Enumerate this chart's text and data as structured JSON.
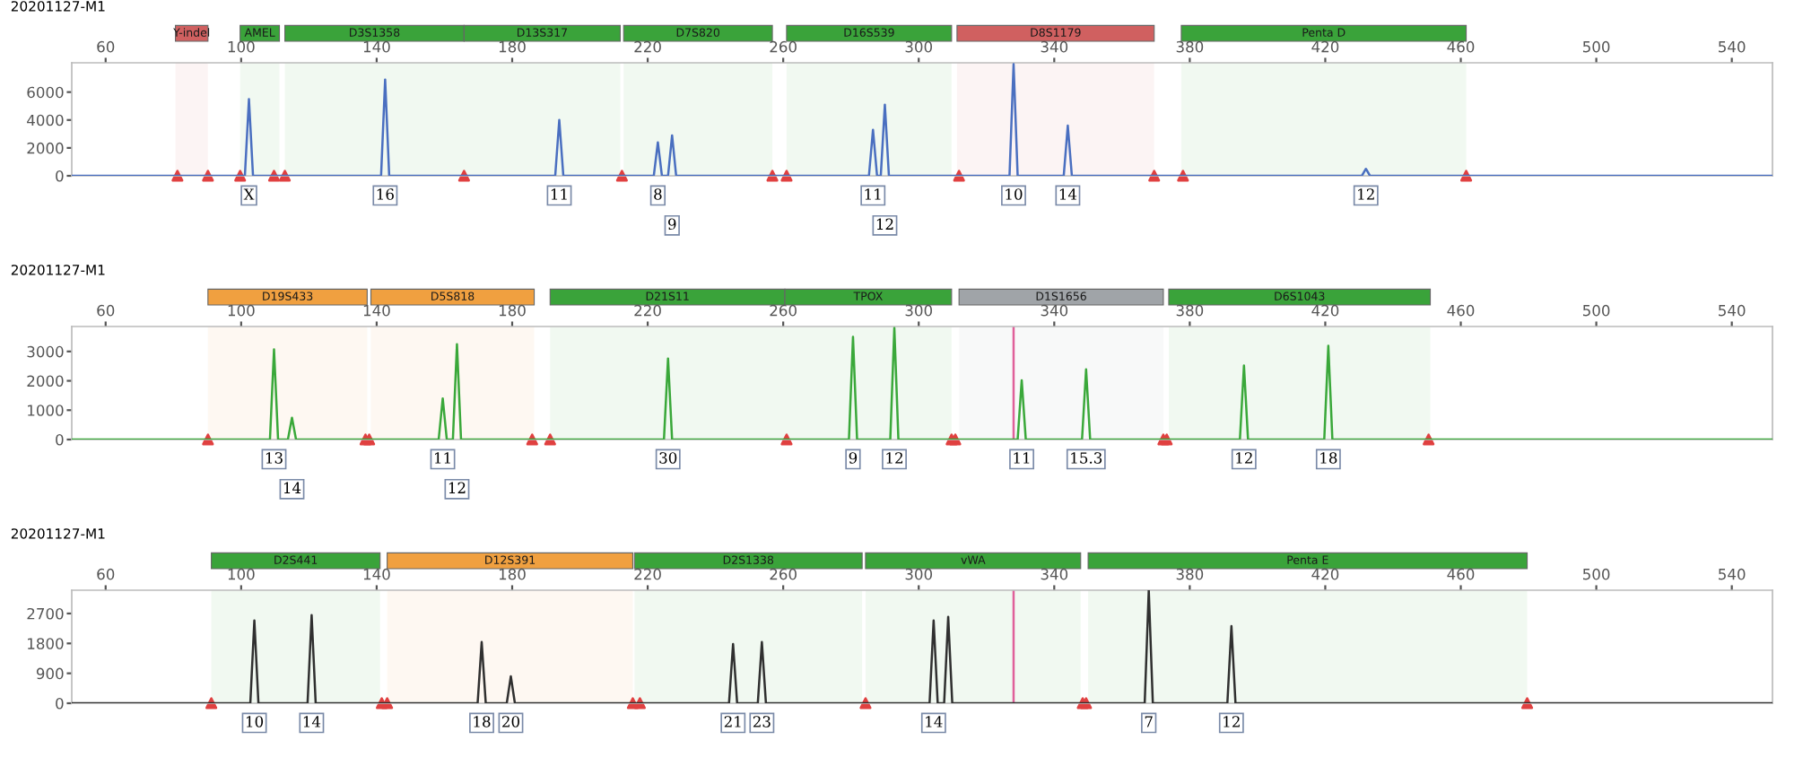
{
  "chart_data": [
    {
      "type": "line",
      "title": "20201127-M1",
      "xlim": [
        50,
        552
      ],
      "xticks": [
        60,
        100,
        140,
        180,
        220,
        260,
        300,
        340,
        380,
        420,
        460,
        500,
        540
      ],
      "ylim": [
        0,
        8100
      ],
      "yticks": [
        0,
        2000,
        4000,
        6000
      ],
      "marker": "none",
      "line_style": "solid",
      "grid": false,
      "series": [
        {
          "color": "#4a6fc0",
          "x": [
            50,
            101.1,
            102.3,
            103.5,
            141.3,
            142.5,
            143.7,
            192.7,
            193.9,
            195.1,
            221.8,
            223,
            224.2,
            226,
            227.2,
            228.4,
            285.3,
            286.5,
            287.7,
            288.8,
            290,
            291.2,
            326.8,
            328,
            329.2,
            342.8,
            344,
            345.2,
            430.8,
            432,
            433.2,
            552
          ],
          "values": [
            0,
            0,
            5500,
            0,
            0,
            6900,
            0,
            0,
            4000,
            0,
            0,
            2400,
            0,
            0,
            2900,
            0,
            0,
            3300,
            0,
            0,
            5100,
            0,
            0,
            8000,
            0,
            0,
            3600,
            0,
            0,
            500,
            0,
            0
          ]
        },
        {
          "type": "scatter",
          "marker": "triangle",
          "color": "#e04040",
          "x": [
            81.2,
            90.2,
            99.7,
            109.7,
            112.9,
            165.8,
            212.4,
            256.8,
            261,
            311.9,
            369.5,
            378,
            461.6
          ],
          "values": [
            0,
            0,
            0,
            0,
            0,
            0,
            0,
            0,
            0,
            0,
            0,
            0,
            0
          ]
        }
      ],
      "bands": [
        {
          "axis": "x",
          "from": 80.6,
          "to": 90.2,
          "label": "Y-indel",
          "color": "#d06060"
        },
        {
          "axis": "x",
          "from": 99.7,
          "to": 111.3,
          "label": "AMEL",
          "color": "#3aa33a"
        },
        {
          "axis": "x",
          "from": 112.9,
          "to": 165.8,
          "label": "D3S1358",
          "color": "#3aa33a"
        },
        {
          "axis": "x",
          "from": 165.8,
          "to": 211.9,
          "label": "D13S317",
          "color": "#3aa33a"
        },
        {
          "axis": "x",
          "from": 212.9,
          "to": 256.8,
          "label": "D7S820",
          "color": "#3aa33a"
        },
        {
          "axis": "x",
          "from": 261,
          "to": 309.7,
          "label": "D16S539",
          "color": "#3aa33a"
        },
        {
          "axis": "x",
          "from": 311.3,
          "to": 369.5,
          "label": "D8S1179",
          "color": "#d06060"
        },
        {
          "axis": "x",
          "from": 377.5,
          "to": 461.6,
          "label": "Penta D",
          "color": "#3aa33a"
        }
      ],
      "annotations": [
        {
          "text": "X",
          "x": 102.3,
          "y": 0
        },
        {
          "text": "16",
          "x": 142.5,
          "y": 0
        },
        {
          "text": "11",
          "x": 193.9,
          "y": 0
        },
        {
          "text": "8",
          "x": 223,
          "y": 0
        },
        {
          "text": "9",
          "x": 227.2,
          "y": 0
        },
        {
          "text": "11",
          "x": 286.5,
          "y": 0
        },
        {
          "text": "12",
          "x": 290,
          "y": 0
        },
        {
          "text": "10",
          "x": 328,
          "y": 0
        },
        {
          "text": "14",
          "x": 344,
          "y": 0
        },
        {
          "text": "12",
          "x": 432,
          "y": 0
        }
      ]
    },
    {
      "type": "line",
      "title": "20201127-M1",
      "xlim": [
        50,
        552
      ],
      "xticks": [
        60,
        100,
        140,
        180,
        220,
        260,
        300,
        340,
        380,
        420,
        460,
        500,
        540
      ],
      "ylim": [
        0,
        3850
      ],
      "yticks": [
        0,
        1000,
        2000,
        3000
      ],
      "marker": "none",
      "line_style": "solid",
      "grid": false,
      "series": [
        {
          "color": "#3aa83a",
          "x": [
            50,
            108.5,
            109.7,
            110.9,
            113.8,
            115,
            116.2,
            158.3,
            159.5,
            160.7,
            162.5,
            163.7,
            164.9,
            224.8,
            226,
            227.2,
            279.4,
            280.6,
            281.8,
            291.6,
            292.8,
            294,
            329.2,
            330.4,
            331.6,
            348.2,
            349.4,
            350.6,
            394.8,
            396,
            397.2,
            419.7,
            420.9,
            422.1,
            552
          ],
          "values": [
            0,
            0,
            3070,
            0,
            0,
            740,
            0,
            0,
            1400,
            0,
            0,
            3250,
            0,
            0,
            2760,
            0,
            0,
            3500,
            0,
            0,
            3800,
            0,
            0,
            2020,
            0,
            0,
            2390,
            0,
            0,
            2520,
            0,
            0,
            3190,
            0,
            0
          ]
        },
        {
          "type": "scatter",
          "marker": "triangle",
          "color": "#e04040",
          "x": [
            90.2,
            136.7,
            137.8,
            185.9,
            191.2,
            261,
            309.7,
            310.8,
            372.2,
            373.2,
            450.5
          ],
          "values": [
            0,
            0,
            0,
            0,
            0,
            0,
            0,
            0,
            0,
            0,
            0
          ]
        }
      ],
      "bands": [
        {
          "axis": "x",
          "from": 90.2,
          "to": 137.2,
          "label": "D19S433",
          "color": "#f0a040"
        },
        {
          "axis": "x",
          "from": 138.3,
          "to": 186.5,
          "label": "D5S818",
          "color": "#f0a040"
        },
        {
          "axis": "x",
          "from": 191.2,
          "to": 260.5,
          "label": "D21S11",
          "color": "#3aa33a"
        },
        {
          "axis": "x",
          "from": 260.5,
          "to": 309.7,
          "label": "TPOX",
          "color": "#3aa33a"
        },
        {
          "axis": "x",
          "from": 311.9,
          "to": 372.2,
          "label": "D1S1656",
          "color": "#a0a4a8"
        },
        {
          "axis": "x",
          "from": 373.8,
          "to": 451,
          "label": "D6S1043",
          "color": "#3aa33a"
        }
      ],
      "ref_lines": [
        {
          "axis": "x",
          "value": 328,
          "color": "#e0609a"
        }
      ],
      "annotations": [
        {
          "text": "13",
          "x": 109.7,
          "y": 0
        },
        {
          "text": "14",
          "x": 115,
          "y": 0
        },
        {
          "text": "11",
          "x": 159.5,
          "y": 0
        },
        {
          "text": "12",
          "x": 163.7,
          "y": 0
        },
        {
          "text": "30",
          "x": 226,
          "y": 0
        },
        {
          "text": "9",
          "x": 280.6,
          "y": 0
        },
        {
          "text": "12",
          "x": 292.8,
          "y": 0
        },
        {
          "text": "11",
          "x": 330.4,
          "y": 0
        },
        {
          "text": "15.3",
          "x": 349.4,
          "y": 0
        },
        {
          "text": "12",
          "x": 396,
          "y": 0
        },
        {
          "text": "18",
          "x": 420.9,
          "y": 0
        }
      ]
    },
    {
      "type": "line",
      "title": "20201127-M1",
      "xlim": [
        50,
        552
      ],
      "xticks": [
        60,
        100,
        140,
        180,
        220,
        260,
        300,
        340,
        380,
        420,
        460,
        500,
        540
      ],
      "ylim": [
        0,
        3400
      ],
      "yticks": [
        0,
        900,
        1800,
        2700
      ],
      "marker": "none",
      "line_style": "solid",
      "grid": false,
      "series": [
        {
          "color": "#303030",
          "x": [
            50,
            102.7,
            103.9,
            105.1,
            119.6,
            120.8,
            122,
            169.8,
            171,
            172.2,
            178.4,
            179.6,
            180.8,
            244,
            245.2,
            246.4,
            252.5,
            253.7,
            254.9,
            303.2,
            304.4,
            305.6,
            307.5,
            308.7,
            309.9,
            366.7,
            367.9,
            369.1,
            391.1,
            392.3,
            393.5,
            552
          ],
          "values": [
            0,
            0,
            2490,
            0,
            0,
            2650,
            0,
            0,
            1840,
            0,
            0,
            810,
            0,
            0,
            1780,
            0,
            0,
            1840,
            0,
            0,
            2490,
            0,
            0,
            2600,
            0,
            0,
            3400,
            0,
            0,
            2320,
            0,
            0
          ]
        },
        {
          "type": "scatter",
          "marker": "triangle",
          "color": "#e04040",
          "x": [
            91.2,
            141.5,
            143.1,
            215.6,
            217.7,
            284.3,
            348.4,
            349.4,
            479.6
          ],
          "values": [
            0,
            0,
            0,
            0,
            0,
            0,
            0,
            0,
            0
          ]
        }
      ],
      "bands": [
        {
          "axis": "x",
          "from": 91.2,
          "to": 141,
          "label": "D2S441",
          "color": "#3aa33a"
        },
        {
          "axis": "x",
          "from": 143.1,
          "to": 215.6,
          "label": "D12S391",
          "color": "#f0a040"
        },
        {
          "axis": "x",
          "from": 216.1,
          "to": 283.3,
          "label": "D2S1338",
          "color": "#3aa33a"
        },
        {
          "axis": "x",
          "from": 284.3,
          "to": 347.8,
          "label": "vWA",
          "color": "#3aa33a"
        },
        {
          "axis": "x",
          "from": 350,
          "to": 479.6,
          "label": "Penta E",
          "color": "#3aa33a"
        }
      ],
      "ref_lines": [
        {
          "axis": "x",
          "value": 328,
          "color": "#e0609a"
        }
      ],
      "annotations": [
        {
          "text": "10",
          "x": 103.9,
          "y": 0
        },
        {
          "text": "14",
          "x": 120.8,
          "y": 0
        },
        {
          "text": "18",
          "x": 171,
          "y": 0
        },
        {
          "text": "20",
          "x": 179.6,
          "y": 0
        },
        {
          "text": "21",
          "x": 245.2,
          "y": 0
        },
        {
          "text": "23",
          "x": 253.7,
          "y": 0
        },
        {
          "text": "14",
          "x": 304.4,
          "y": 0
        },
        {
          "text": "7",
          "x": 367.9,
          "y": 0
        },
        {
          "text": "12",
          "x": 392.3,
          "y": 0
        }
      ]
    }
  ]
}
